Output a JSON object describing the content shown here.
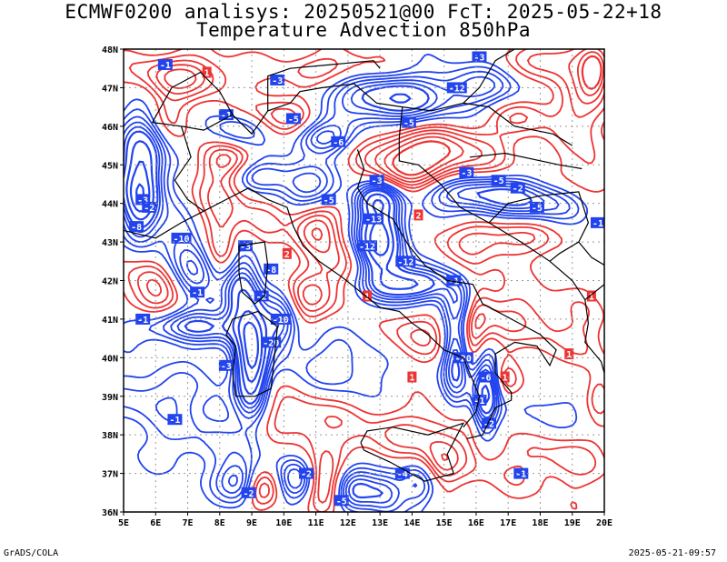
{
  "header": {
    "title_line1": "ECMWF0200 analisys: 20250521@00 FcT: 2025-05-22+18",
    "title_line2": "Temperature Advection 850hPa"
  },
  "map": {
    "lon_range": [
      5,
      20
    ],
    "lat_range": [
      36,
      48
    ],
    "lon_ticks": [
      "5E",
      "6E",
      "7E",
      "8E",
      "9E",
      "10E",
      "11E",
      "12E",
      "13E",
      "14E",
      "15E",
      "16E",
      "17E",
      "18E",
      "19E",
      "20E"
    ],
    "lat_ticks": [
      "36N",
      "37N",
      "38N",
      "39N",
      "40N",
      "41N",
      "42N",
      "43N",
      "44N",
      "45N",
      "46N",
      "47N",
      "48N"
    ],
    "grid": true,
    "colors": {
      "warm_advection": "#ee3333",
      "cold_advection": "#2244ee",
      "coastline": "#000000",
      "grid": "#9a9a9a"
    },
    "contour_labels": [
      "-1",
      "-2",
      "-3",
      "-4",
      "-5",
      "-6",
      "-8",
      "-10",
      "-12",
      "1",
      "2",
      "3",
      "5"
    ]
  },
  "footer": {
    "left": "GrADS/COLA",
    "right": "2025-05-21-09:57"
  }
}
